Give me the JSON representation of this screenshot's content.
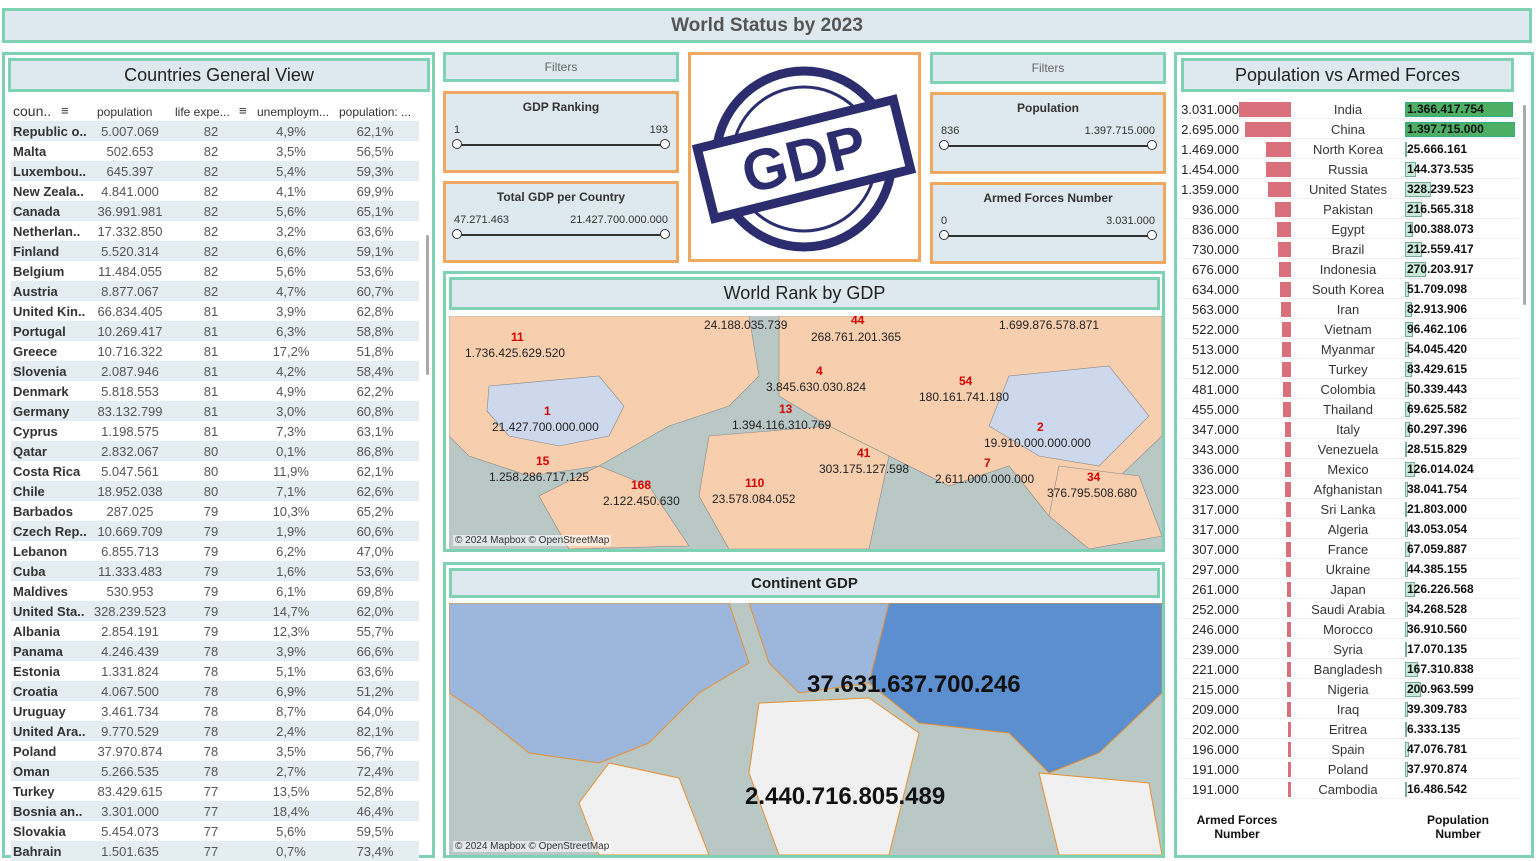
{
  "title": "World Status by 2023",
  "countries_panel": {
    "title": "Countries General View",
    "columns": [
      "coun..",
      "population",
      "life expe...",
      "unemploym...",
      "population: ..."
    ],
    "rows": [
      [
        "Republic o..",
        "5.007.069",
        "82",
        "4,9%",
        "62,1%"
      ],
      [
        "Malta",
        "502.653",
        "82",
        "3,5%",
        "56,5%"
      ],
      [
        "Luxembou..",
        "645.397",
        "82",
        "5,4%",
        "59,3%"
      ],
      [
        "New Zeala..",
        "4.841.000",
        "82",
        "4,1%",
        "69,9%"
      ],
      [
        "Canada",
        "36.991.981",
        "82",
        "5,6%",
        "65,1%"
      ],
      [
        "Netherlan..",
        "17.332.850",
        "82",
        "3,2%",
        "63,6%"
      ],
      [
        "Finland",
        "5.520.314",
        "82",
        "6,6%",
        "59,1%"
      ],
      [
        "Belgium",
        "11.484.055",
        "82",
        "5,6%",
        "53,6%"
      ],
      [
        "Austria",
        "8.877.067",
        "82",
        "4,7%",
        "60,7%"
      ],
      [
        "United Kin..",
        "66.834.405",
        "81",
        "3,9%",
        "62,8%"
      ],
      [
        "Portugal",
        "10.269.417",
        "81",
        "6,3%",
        "58,8%"
      ],
      [
        "Greece",
        "10.716.322",
        "81",
        "17,2%",
        "51,8%"
      ],
      [
        "Slovenia",
        "2.087.946",
        "81",
        "4,2%",
        "58,4%"
      ],
      [
        "Denmark",
        "5.818.553",
        "81",
        "4,9%",
        "62,2%"
      ],
      [
        "Germany",
        "83.132.799",
        "81",
        "3,0%",
        "60,8%"
      ],
      [
        "Cyprus",
        "1.198.575",
        "81",
        "7,3%",
        "63,1%"
      ],
      [
        "Qatar",
        "2.832.067",
        "80",
        "0,1%",
        "86,8%"
      ],
      [
        "Costa Rica",
        "5.047.561",
        "80",
        "11,9%",
        "62,1%"
      ],
      [
        "Chile",
        "18.952.038",
        "80",
        "7,1%",
        "62,6%"
      ],
      [
        "Barbados",
        "287.025",
        "79",
        "10,3%",
        "65,2%"
      ],
      [
        "Czech Rep..",
        "10.669.709",
        "79",
        "1,9%",
        "60,6%"
      ],
      [
        "Lebanon",
        "6.855.713",
        "79",
        "6,2%",
        "47,0%"
      ],
      [
        "Cuba",
        "11.333.483",
        "79",
        "1,6%",
        "53,6%"
      ],
      [
        "Maldives",
        "530.953",
        "79",
        "6,1%",
        "69,8%"
      ],
      [
        "United Sta..",
        "328.239.523",
        "79",
        "14,7%",
        "62,0%"
      ],
      [
        "Albania",
        "2.854.191",
        "79",
        "12,3%",
        "55,7%"
      ],
      [
        "Panama",
        "4.246.439",
        "78",
        "3,9%",
        "66,6%"
      ],
      [
        "Estonia",
        "1.331.824",
        "78",
        "5,1%",
        "63,6%"
      ],
      [
        "Croatia",
        "4.067.500",
        "78",
        "6,9%",
        "51,2%"
      ],
      [
        "Uruguay",
        "3.461.734",
        "78",
        "8,7%",
        "64,0%"
      ],
      [
        "United Ara..",
        "9.770.529",
        "78",
        "2,4%",
        "82,1%"
      ],
      [
        "Poland",
        "37.970.874",
        "78",
        "3,5%",
        "56,7%"
      ],
      [
        "Oman",
        "5.266.535",
        "78",
        "2,7%",
        "72,4%"
      ],
      [
        "Turkey",
        "83.429.615",
        "77",
        "13,5%",
        "52,8%"
      ],
      [
        "Bosnia an..",
        "3.301.000",
        "77",
        "18,4%",
        "46,4%"
      ],
      [
        "Slovakia",
        "5.454.073",
        "77",
        "5,6%",
        "59,5%"
      ],
      [
        "Bahrain",
        "1.501.635",
        "77",
        "0,7%",
        "73,4%"
      ]
    ]
  },
  "filters_left": {
    "header": "Filters",
    "gdp_ranking": {
      "label": "GDP Ranking",
      "min": "1",
      "max": "193"
    },
    "total_gdp": {
      "label": "Total GDP per Country",
      "min": "47.271.463",
      "max": "21.427.700.000.000"
    }
  },
  "filters_right": {
    "header": "Filters",
    "population": {
      "label": "Population",
      "min": "836",
      "max": "1.397.715.000"
    },
    "armed": {
      "label": "Armed Forces Number",
      "min": "0",
      "max": "3.031.000"
    }
  },
  "logo_text": "GDP",
  "world_rank": {
    "title": "World Rank by GDP",
    "attribution": "© 2024 Mapbox © OpenStreetMap",
    "ranks": [
      "11",
      "44",
      "4",
      "54",
      "1",
      "13",
      "2",
      "15",
      "41",
      "7",
      "168",
      "110",
      "34"
    ],
    "values": [
      "24.188.035.739",
      "268.761.201.365",
      "1.699.876.578.871",
      "1.736.425.629.520",
      "3.845.630.030.824",
      "180.161.741.180",
      "21.427.700.000.000",
      "1.394.116.310.769",
      "19.910.000.000.000",
      "303.175.127.598",
      "2.611.000.000.000",
      "1.258.286.717.125",
      "2.122.450.630",
      "23.578.084.052",
      "376.795.508.680"
    ]
  },
  "continent": {
    "title": "Continent GDP",
    "attribution": "© 2024 Mapbox © OpenStreetMap",
    "asia_value": "37.631.637.700.246",
    "africa_value": "2.440.716.805.489"
  },
  "pop_vs_armed": {
    "title": "Population vs Armed Forces",
    "footer_left": "Armed Forces Number",
    "footer_right": "Population Number",
    "rows": [
      {
        "armed": "3.031.000",
        "country": "India",
        "pop": "1.366.417.754",
        "a": 3031000,
        "p": 1366417754
      },
      {
        "armed": "2.695.000",
        "country": "China",
        "pop": "1.397.715.000",
        "a": 2695000,
        "p": 1397715000
      },
      {
        "armed": "1.469.000",
        "country": "North Korea",
        "pop": "25.666.161",
        "a": 1469000,
        "p": 25666161
      },
      {
        "armed": "1.454.000",
        "country": "Russia",
        "pop": "144.373.535",
        "a": 1454000,
        "p": 144373535
      },
      {
        "armed": "1.359.000",
        "country": "United States",
        "pop": "328.239.523",
        "a": 1359000,
        "p": 328239523
      },
      {
        "armed": "936.000",
        "country": "Pakistan",
        "pop": "216.565.318",
        "a": 936000,
        "p": 216565318
      },
      {
        "armed": "836.000",
        "country": "Egypt",
        "pop": "100.388.073",
        "a": 836000,
        "p": 100388073
      },
      {
        "armed": "730.000",
        "country": "Brazil",
        "pop": "212.559.417",
        "a": 730000,
        "p": 212559417
      },
      {
        "armed": "676.000",
        "country": "Indonesia",
        "pop": "270.203.917",
        "a": 676000,
        "p": 270203917
      },
      {
        "armed": "634.000",
        "country": "South Korea",
        "pop": "51.709.098",
        "a": 634000,
        "p": 51709098
      },
      {
        "armed": "563.000",
        "country": "Iran",
        "pop": "82.913.906",
        "a": 563000,
        "p": 82913906
      },
      {
        "armed": "522.000",
        "country": "Vietnam",
        "pop": "96.462.106",
        "a": 522000,
        "p": 96462106
      },
      {
        "armed": "513.000",
        "country": "Myanmar",
        "pop": "54.045.420",
        "a": 513000,
        "p": 54045420
      },
      {
        "armed": "512.000",
        "country": "Turkey",
        "pop": "83.429.615",
        "a": 512000,
        "p": 83429615
      },
      {
        "armed": "481.000",
        "country": "Colombia",
        "pop": "50.339.443",
        "a": 481000,
        "p": 50339443
      },
      {
        "armed": "455.000",
        "country": "Thailand",
        "pop": "69.625.582",
        "a": 455000,
        "p": 69625582
      },
      {
        "armed": "347.000",
        "country": "Italy",
        "pop": "60.297.396",
        "a": 347000,
        "p": 60297396
      },
      {
        "armed": "343.000",
        "country": "Venezuela",
        "pop": "28.515.829",
        "a": 343000,
        "p": 28515829
      },
      {
        "armed": "336.000",
        "country": "Mexico",
        "pop": "126.014.024",
        "a": 336000,
        "p": 126014024
      },
      {
        "armed": "323.000",
        "country": "Afghanistan",
        "pop": "38.041.754",
        "a": 323000,
        "p": 38041754
      },
      {
        "armed": "317.000",
        "country": "Sri Lanka",
        "pop": "21.803.000",
        "a": 317000,
        "p": 21803000
      },
      {
        "armed": "317.000",
        "country": "Algeria",
        "pop": "43.053.054",
        "a": 317000,
        "p": 43053054
      },
      {
        "armed": "307.000",
        "country": "France",
        "pop": "67.059.887",
        "a": 307000,
        "p": 67059887
      },
      {
        "armed": "297.000",
        "country": "Ukraine",
        "pop": "44.385.155",
        "a": 297000,
        "p": 44385155
      },
      {
        "armed": "261.000",
        "country": "Japan",
        "pop": "126.226.568",
        "a": 261000,
        "p": 126226568
      },
      {
        "armed": "252.000",
        "country": "Saudi Arabia",
        "pop": "34.268.528",
        "a": 252000,
        "p": 34268528
      },
      {
        "armed": "246.000",
        "country": "Morocco",
        "pop": "36.910.560",
        "a": 246000,
        "p": 36910560
      },
      {
        "armed": "239.000",
        "country": "Syria",
        "pop": "17.070.135",
        "a": 239000,
        "p": 17070135
      },
      {
        "armed": "221.000",
        "country": "Bangladesh",
        "pop": "167.310.838",
        "a": 221000,
        "p": 167310838
      },
      {
        "armed": "215.000",
        "country": "Nigeria",
        "pop": "200.963.599",
        "a": 215000,
        "p": 200963599
      },
      {
        "armed": "209.000",
        "country": "Iraq",
        "pop": "39.309.783",
        "a": 209000,
        "p": 39309783
      },
      {
        "armed": "202.000",
        "country": "Eritrea",
        "pop": "6.333.135",
        "a": 202000,
        "p": 6333135
      },
      {
        "armed": "196.000",
        "country": "Spain",
        "pop": "47.076.781",
        "a": 196000,
        "p": 47076781
      },
      {
        "armed": "191.000",
        "country": "Poland",
        "pop": "37.970.874",
        "a": 191000,
        "p": 37970874
      },
      {
        "armed": "191.000",
        "country": "Cambodia",
        "pop": "16.486.542",
        "a": 191000,
        "p": 16486542
      }
    ]
  },
  "colors": {
    "border_green": "#7fd1b4",
    "border_orange": "#f0a860",
    "header_bg": "#dde9ee",
    "armed_bar": "#d9707b",
    "pop_bar": "#c9ead8",
    "rank_red": "#d40000"
  }
}
